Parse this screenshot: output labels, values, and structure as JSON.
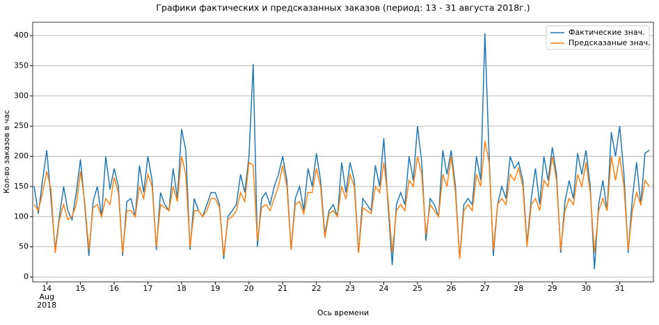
{
  "chart_data": {
    "type": "line",
    "title": "Графики фактических и предсказанных заказов (период: 13 - 31 августа 2018г.)",
    "x_label": "Ось времени",
    "y_label": "Кол-во заказов в час",
    "x_sublabels": [
      "Aug",
      "2018"
    ],
    "xlim": [
      13.583,
      32
    ],
    "xticks": [
      14,
      15,
      16,
      17,
      18,
      19,
      20,
      21,
      22,
      23,
      24,
      25,
      26,
      27,
      28,
      29,
      30,
      31
    ],
    "ylim": [
      -8,
      422
    ],
    "yticks": [
      0,
      50,
      100,
      150,
      200,
      250,
      300,
      350,
      400
    ],
    "grid": "y",
    "legend": "upper right",
    "x": [
      13.625,
      13.75,
      13.875,
      14,
      14.125,
      14.25,
      14.375,
      14.5,
      14.625,
      14.75,
      14.875,
      15,
      15.125,
      15.25,
      15.375,
      15.5,
      15.625,
      15.75,
      15.875,
      16,
      16.125,
      16.25,
      16.375,
      16.5,
      16.625,
      16.75,
      16.875,
      17,
      17.125,
      17.25,
      17.375,
      17.5,
      17.625,
      17.75,
      17.875,
      18,
      18.125,
      18.25,
      18.375,
      18.5,
      18.625,
      18.75,
      18.875,
      19,
      19.125,
      19.25,
      19.375,
      19.5,
      19.625,
      19.75,
      19.875,
      20,
      20.125,
      20.25,
      20.375,
      20.5,
      20.625,
      20.75,
      20.875,
      21,
      21.125,
      21.25,
      21.375,
      21.5,
      21.625,
      21.75,
      21.875,
      22,
      22.125,
      22.25,
      22.375,
      22.5,
      22.625,
      22.75,
      22.875,
      23,
      23.125,
      23.25,
      23.375,
      23.5,
      23.625,
      23.75,
      23.875,
      24,
      24.125,
      24.25,
      24.375,
      24.5,
      24.625,
      24.75,
      24.875,
      25,
      25.125,
      25.25,
      25.375,
      25.5,
      25.625,
      25.75,
      25.875,
      26,
      26.125,
      26.25,
      26.375,
      26.5,
      26.625,
      26.75,
      26.875,
      27,
      27.125,
      27.25,
      27.375,
      27.5,
      27.625,
      27.75,
      27.875,
      28,
      28.125,
      28.25,
      28.375,
      28.5,
      28.625,
      28.75,
      28.875,
      29,
      29.125,
      29.25,
      29.375,
      29.5,
      29.625,
      29.75,
      29.875,
      30,
      30.125,
      30.25,
      30.375,
      30.5,
      30.625,
      30.75,
      30.875,
      31,
      31.125,
      31.25,
      31.375,
      31.5,
      31.625,
      31.75,
      31.875
    ],
    "series": [
      {
        "name": "Фактические знач.",
        "color": "#1f77b4",
        "values": [
          150,
          105,
          160,
          210,
          130,
          45,
          100,
          150,
          110,
          95,
          140,
          195,
          120,
          35,
          125,
          150,
          100,
          200,
          145,
          180,
          150,
          35,
          125,
          130,
          100,
          185,
          140,
          200,
          160,
          45,
          140,
          120,
          110,
          180,
          130,
          245,
          210,
          45,
          130,
          110,
          100,
          120,
          140,
          140,
          120,
          30,
          100,
          110,
          120,
          170,
          140,
          200,
          353,
          50,
          130,
          140,
          120,
          150,
          170,
          200,
          160,
          45,
          130,
          150,
          110,
          180,
          150,
          205,
          160,
          70,
          110,
          120,
          100,
          190,
          140,
          190,
          160,
          40,
          130,
          120,
          110,
          185,
          150,
          230,
          120,
          20,
          120,
          140,
          120,
          200,
          160,
          250,
          190,
          60,
          130,
          120,
          100,
          210,
          170,
          210,
          150,
          30,
          120,
          130,
          120,
          200,
          160,
          404,
          200,
          35,
          120,
          150,
          130,
          200,
          180,
          190,
          160,
          55,
          130,
          180,
          120,
          200,
          160,
          215,
          170,
          40,
          125,
          160,
          130,
          205,
          170,
          210,
          150,
          13,
          120,
          160,
          110,
          240,
          200,
          250,
          170,
          40,
          130,
          190,
          120,
          205,
          210
        ]
      },
      {
        "name": "Предсказаные знач.",
        "color": "#ff7f0e",
        "values": [
          120,
          110,
          140,
          175,
          145,
          40,
          95,
          120,
          95,
          100,
          120,
          175,
          125,
          45,
          115,
          120,
          100,
          130,
          120,
          165,
          140,
          40,
          110,
          110,
          100,
          150,
          130,
          170,
          150,
          50,
          120,
          115,
          110,
          150,
          125,
          200,
          170,
          50,
          110,
          110,
          100,
          110,
          130,
          130,
          115,
          35,
          95,
          100,
          110,
          140,
          125,
          190,
          185,
          60,
          115,
          120,
          110,
          130,
          150,
          185,
          150,
          45,
          120,
          125,
          105,
          140,
          140,
          180,
          150,
          65,
          105,
          110,
          100,
          150,
          130,
          170,
          150,
          40,
          115,
          110,
          105,
          150,
          140,
          190,
          130,
          40,
          110,
          120,
          110,
          160,
          150,
          200,
          170,
          70,
          120,
          110,
          100,
          170,
          150,
          200,
          140,
          30,
          110,
          120,
          110,
          170,
          150,
          225,
          190,
          45,
          120,
          130,
          120,
          170,
          160,
          180,
          150,
          50,
          120,
          130,
          110,
          160,
          150,
          200,
          160,
          45,
          110,
          130,
          120,
          170,
          150,
          190,
          140,
          40,
          110,
          130,
          110,
          200,
          160,
          200,
          150,
          45,
          110,
          140,
          120,
          160,
          150
        ]
      }
    ]
  }
}
